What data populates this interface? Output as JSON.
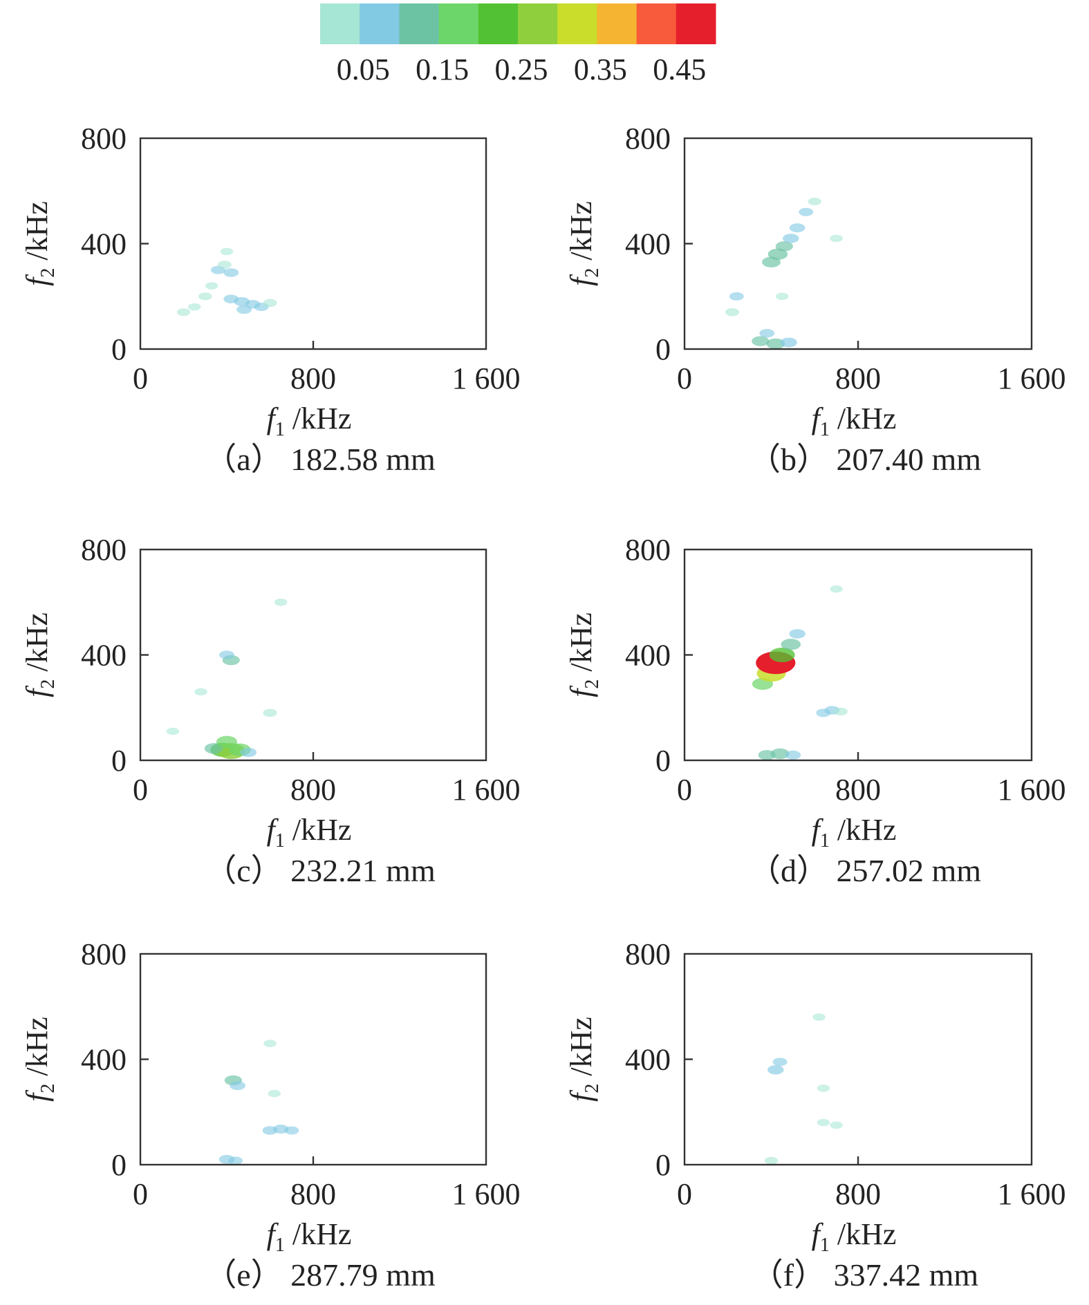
{
  "colorbar": {
    "colors": [
      "#a6e6d4",
      "#82c9e4",
      "#6cc3a4",
      "#6dd66a",
      "#52c234",
      "#8fcf3d",
      "#c9dd2a",
      "#f5b532",
      "#f85b3b",
      "#e51f2c"
    ],
    "tick_labels": [
      "0.05",
      "0.15",
      "0.25",
      "0.35",
      "0.45"
    ]
  },
  "chart_data": [
    {
      "type": "heatmap",
      "caption": "（a） 182.58 mm",
      "xlabel_var": "f",
      "xlabel_sub": "1",
      "xlabel_unit": " /kHz",
      "ylabel_var": "f",
      "ylabel_sub": "2",
      "ylabel_unit": " /kHz",
      "xlim": [
        0,
        1600
      ],
      "ylim": [
        0,
        800
      ],
      "xticks": [
        0,
        800,
        1600
      ],
      "xtick_labels": [
        "0",
        "800",
        "1 600"
      ],
      "yticks": [
        0,
        400,
        800
      ],
      "ytick_labels": [
        "0",
        "400",
        "800"
      ],
      "clim": [
        0,
        0.5
      ],
      "points": [
        {
          "f1": 360,
          "f2": 300,
          "v": 0.05
        },
        {
          "f1": 420,
          "f2": 290,
          "v": 0.06
        },
        {
          "f1": 390,
          "f2": 320,
          "v": 0.04
        },
        {
          "f1": 300,
          "f2": 200,
          "v": 0.03
        },
        {
          "f1": 420,
          "f2": 190,
          "v": 0.06
        },
        {
          "f1": 470,
          "f2": 180,
          "v": 0.07
        },
        {
          "f1": 520,
          "f2": 170,
          "v": 0.06
        },
        {
          "f1": 560,
          "f2": 160,
          "v": 0.05
        },
        {
          "f1": 480,
          "f2": 150,
          "v": 0.06
        },
        {
          "f1": 200,
          "f2": 140,
          "v": 0.03
        },
        {
          "f1": 250,
          "f2": 160,
          "v": 0.02
        },
        {
          "f1": 600,
          "f2": 175,
          "v": 0.04
        },
        {
          "f1": 330,
          "f2": 240,
          "v": 0.02
        },
        {
          "f1": 400,
          "f2": 370,
          "v": 0.02
        }
      ]
    },
    {
      "type": "heatmap",
      "caption": "（b） 207.40 mm",
      "xlabel_var": "f",
      "xlabel_sub": "1",
      "xlabel_unit": " /kHz",
      "ylabel_var": "f",
      "ylabel_sub": "2",
      "ylabel_unit": " /kHz",
      "xlim": [
        0,
        1600
      ],
      "ylim": [
        0,
        800
      ],
      "xticks": [
        0,
        800,
        1600
      ],
      "xtick_labels": [
        "0",
        "800",
        "1 600"
      ],
      "yticks": [
        0,
        400,
        800
      ],
      "ytick_labels": [
        "0",
        "400",
        "800"
      ],
      "clim": [
        0,
        0.5
      ],
      "points": [
        {
          "f1": 400,
          "f2": 330,
          "v": 0.12
        },
        {
          "f1": 430,
          "f2": 360,
          "v": 0.14
        },
        {
          "f1": 460,
          "f2": 390,
          "v": 0.1
        },
        {
          "f1": 490,
          "f2": 420,
          "v": 0.08
        },
        {
          "f1": 520,
          "f2": 460,
          "v": 0.07
        },
        {
          "f1": 560,
          "f2": 520,
          "v": 0.05
        },
        {
          "f1": 600,
          "f2": 560,
          "v": 0.03
        },
        {
          "f1": 240,
          "f2": 200,
          "v": 0.05
        },
        {
          "f1": 220,
          "f2": 140,
          "v": 0.04
        },
        {
          "f1": 350,
          "f2": 30,
          "v": 0.1
        },
        {
          "f1": 420,
          "f2": 20,
          "v": 0.12
        },
        {
          "f1": 480,
          "f2": 25,
          "v": 0.09
        },
        {
          "f1": 380,
          "f2": 60,
          "v": 0.06
        },
        {
          "f1": 700,
          "f2": 420,
          "v": 0.02
        },
        {
          "f1": 450,
          "f2": 200,
          "v": 0.02
        }
      ]
    },
    {
      "type": "heatmap",
      "caption": "（c） 232.21 mm",
      "xlabel_var": "f",
      "xlabel_sub": "1",
      "xlabel_unit": " /kHz",
      "ylabel_var": "f",
      "ylabel_sub": "2",
      "ylabel_unit": " /kHz",
      "xlim": [
        0,
        1600
      ],
      "ylim": [
        0,
        800
      ],
      "xticks": [
        0,
        800,
        1600
      ],
      "xtick_labels": [
        "0",
        "800",
        "1 600"
      ],
      "yticks": [
        0,
        400,
        800
      ],
      "ytick_labels": [
        "0",
        "400",
        "800"
      ],
      "clim": [
        0,
        0.5
      ],
      "points": [
        {
          "f1": 420,
          "f2": 380,
          "v": 0.1
        },
        {
          "f1": 400,
          "f2": 400,
          "v": 0.06
        },
        {
          "f1": 600,
          "f2": 180,
          "v": 0.04
        },
        {
          "f1": 380,
          "f2": 40,
          "v": 0.22
        },
        {
          "f1": 420,
          "f2": 35,
          "v": 0.28
        },
        {
          "f1": 460,
          "f2": 40,
          "v": 0.18
        },
        {
          "f1": 340,
          "f2": 45,
          "v": 0.12
        },
        {
          "f1": 400,
          "f2": 70,
          "v": 0.16
        },
        {
          "f1": 500,
          "f2": 30,
          "v": 0.08
        },
        {
          "f1": 150,
          "f2": 110,
          "v": 0.02
        },
        {
          "f1": 280,
          "f2": 260,
          "v": 0.02
        },
        {
          "f1": 650,
          "f2": 600,
          "v": 0.02
        }
      ]
    },
    {
      "type": "heatmap",
      "caption": "（d） 257.02 mm",
      "xlabel_var": "f",
      "xlabel_sub": "1",
      "xlabel_unit": " /kHz",
      "ylabel_var": "f",
      "ylabel_sub": "2",
      "ylabel_unit": " /kHz",
      "xlim": [
        0,
        1600
      ],
      "ylim": [
        0,
        800
      ],
      "xticks": [
        0,
        800,
        1600
      ],
      "xtick_labels": [
        "0",
        "800",
        "1 600"
      ],
      "yticks": [
        0,
        400,
        800
      ],
      "ytick_labels": [
        "0",
        "400",
        "800"
      ],
      "clim": [
        0,
        0.5
      ],
      "points": [
        {
          "f1": 360,
          "f2": 290,
          "v": 0.16
        },
        {
          "f1": 400,
          "f2": 330,
          "v": 0.3
        },
        {
          "f1": 420,
          "f2": 370,
          "v": 0.48
        },
        {
          "f1": 450,
          "f2": 400,
          "v": 0.24
        },
        {
          "f1": 490,
          "f2": 440,
          "v": 0.14
        },
        {
          "f1": 520,
          "f2": 480,
          "v": 0.08
        },
        {
          "f1": 380,
          "f2": 20,
          "v": 0.1
        },
        {
          "f1": 440,
          "f2": 25,
          "v": 0.12
        },
        {
          "f1": 500,
          "f2": 20,
          "v": 0.07
        },
        {
          "f1": 680,
          "f2": 190,
          "v": 0.06
        },
        {
          "f1": 640,
          "f2": 180,
          "v": 0.05
        },
        {
          "f1": 720,
          "f2": 185,
          "v": 0.04
        },
        {
          "f1": 700,
          "f2": 650,
          "v": 0.02
        }
      ]
    },
    {
      "type": "heatmap",
      "caption": "（e） 287.79 mm",
      "xlabel_var": "f",
      "xlabel_sub": "1",
      "xlabel_unit": " /kHz",
      "ylabel_var": "f",
      "ylabel_sub": "2",
      "ylabel_unit": " /kHz",
      "xlim": [
        0,
        1600
      ],
      "ylim": [
        0,
        800
      ],
      "xticks": [
        0,
        800,
        1600
      ],
      "xtick_labels": [
        "0",
        "800",
        "1 600"
      ],
      "yticks": [
        0,
        400,
        800
      ],
      "ytick_labels": [
        "0",
        "400",
        "800"
      ],
      "clim": [
        0,
        0.5
      ],
      "points": [
        {
          "f1": 430,
          "f2": 320,
          "v": 0.1
        },
        {
          "f1": 450,
          "f2": 300,
          "v": 0.07
        },
        {
          "f1": 600,
          "f2": 130,
          "v": 0.06
        },
        {
          "f1": 650,
          "f2": 135,
          "v": 0.07
        },
        {
          "f1": 700,
          "f2": 130,
          "v": 0.05
        },
        {
          "f1": 400,
          "f2": 20,
          "v": 0.07
        },
        {
          "f1": 440,
          "f2": 15,
          "v": 0.05
        },
        {
          "f1": 600,
          "f2": 460,
          "v": 0.02
        },
        {
          "f1": 620,
          "f2": 270,
          "v": 0.02
        }
      ]
    },
    {
      "type": "heatmap",
      "caption": "（f） 337.42 mm",
      "xlabel_var": "f",
      "xlabel_sub": "1",
      "xlabel_unit": " /kHz",
      "ylabel_var": "f",
      "ylabel_sub": "2",
      "ylabel_unit": " /kHz",
      "xlim": [
        0,
        1600
      ],
      "ylim": [
        0,
        800
      ],
      "xticks": [
        0,
        800,
        1600
      ],
      "xtick_labels": [
        "0",
        "800",
        "1 600"
      ],
      "yticks": [
        0,
        400,
        800
      ],
      "ytick_labels": [
        "0",
        "400",
        "800"
      ],
      "clim": [
        0,
        0.5
      ],
      "points": [
        {
          "f1": 420,
          "f2": 360,
          "v": 0.08
        },
        {
          "f1": 440,
          "f2": 390,
          "v": 0.05
        },
        {
          "f1": 400,
          "f2": 15,
          "v": 0.03
        },
        {
          "f1": 640,
          "f2": 160,
          "v": 0.02
        },
        {
          "f1": 700,
          "f2": 150,
          "v": 0.02
        },
        {
          "f1": 620,
          "f2": 560,
          "v": 0.02
        },
        {
          "f1": 640,
          "f2": 290,
          "v": 0.02
        }
      ]
    }
  ]
}
